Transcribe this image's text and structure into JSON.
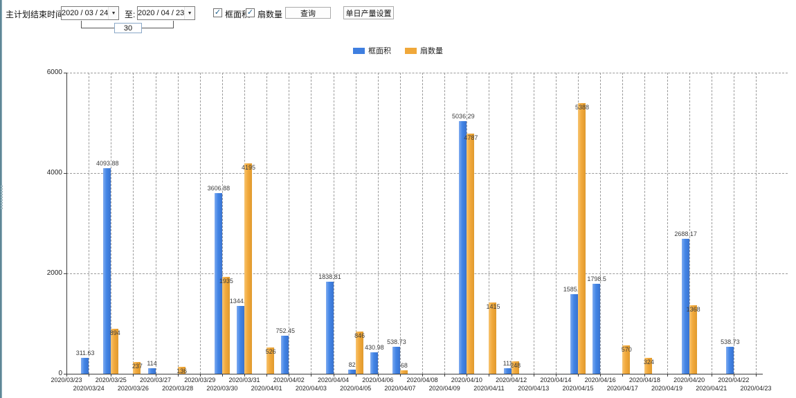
{
  "toolbar": {
    "end_time_label": "主计划结束时间:",
    "date_from": "2020 / 03 / 24",
    "to_label": "至:",
    "date_to": "2020 / 04 / 23",
    "interval_value": "30",
    "checkbox_frame_area": {
      "label": "框面积",
      "checked": true,
      "check_glyph": "✓"
    },
    "checkbox_fan_count": {
      "label": "扇数量",
      "checked": true,
      "check_glyph": "✓"
    },
    "query_button": "查询",
    "daily_output_button": "单日产量设置",
    "dropdown_glyph": "▼"
  },
  "legend": [
    {
      "label": "框面积",
      "color": "#3f7fe0"
    },
    {
      "label": "扇数量",
      "color": "#f0a83a"
    }
  ],
  "chart_data": {
    "type": "bar",
    "title": "",
    "xlabel": "",
    "ylabel": "",
    "ylim": [
      0,
      6000
    ],
    "yticks": [
      0,
      2000,
      4000,
      6000
    ],
    "grid": true,
    "legend_position": "top",
    "categories": [
      "2020/03/23",
      "2020/03/24",
      "2020/03/25",
      "2020/03/26",
      "2020/03/27",
      "2020/03/28",
      "2020/03/29",
      "2020/03/30",
      "2020/03/31",
      "2020/04/01",
      "2020/04/02",
      "2020/04/03",
      "2020/04/04",
      "2020/04/05",
      "2020/04/06",
      "2020/04/07",
      "2020/04/08",
      "2020/04/09",
      "2020/04/10",
      "2020/04/11",
      "2020/04/12",
      "2020/04/13",
      "2020/04/14",
      "2020/04/15",
      "2020/04/16",
      "2020/04/17",
      "2020/04/18",
      "2020/04/19",
      "2020/04/20",
      "2020/04/21",
      "2020/04/22",
      "2020/04/23"
    ],
    "series": [
      {
        "name": "框面积",
        "color_key": "blue",
        "values": [
          null,
          311.63,
          4093.88,
          null,
          114,
          null,
          null,
          3606.88,
          1344.95,
          null,
          752.45,
          null,
          1838.81,
          82,
          430.98,
          538.73,
          null,
          null,
          5036.29,
          null,
          111,
          null,
          null,
          1585.96,
          1798.5,
          null,
          null,
          null,
          2688.17,
          null,
          538.73,
          null
        ]
      },
      {
        "name": "扇数量",
        "color_key": "orange",
        "values": [
          null,
          null,
          894,
          237,
          null,
          136,
          null,
          1935,
          4195,
          526,
          null,
          null,
          null,
          846,
          null,
          68,
          null,
          null,
          4787,
          1415,
          248,
          null,
          null,
          5388,
          null,
          570,
          324,
          null,
          1368,
          null,
          null,
          null
        ]
      }
    ]
  }
}
